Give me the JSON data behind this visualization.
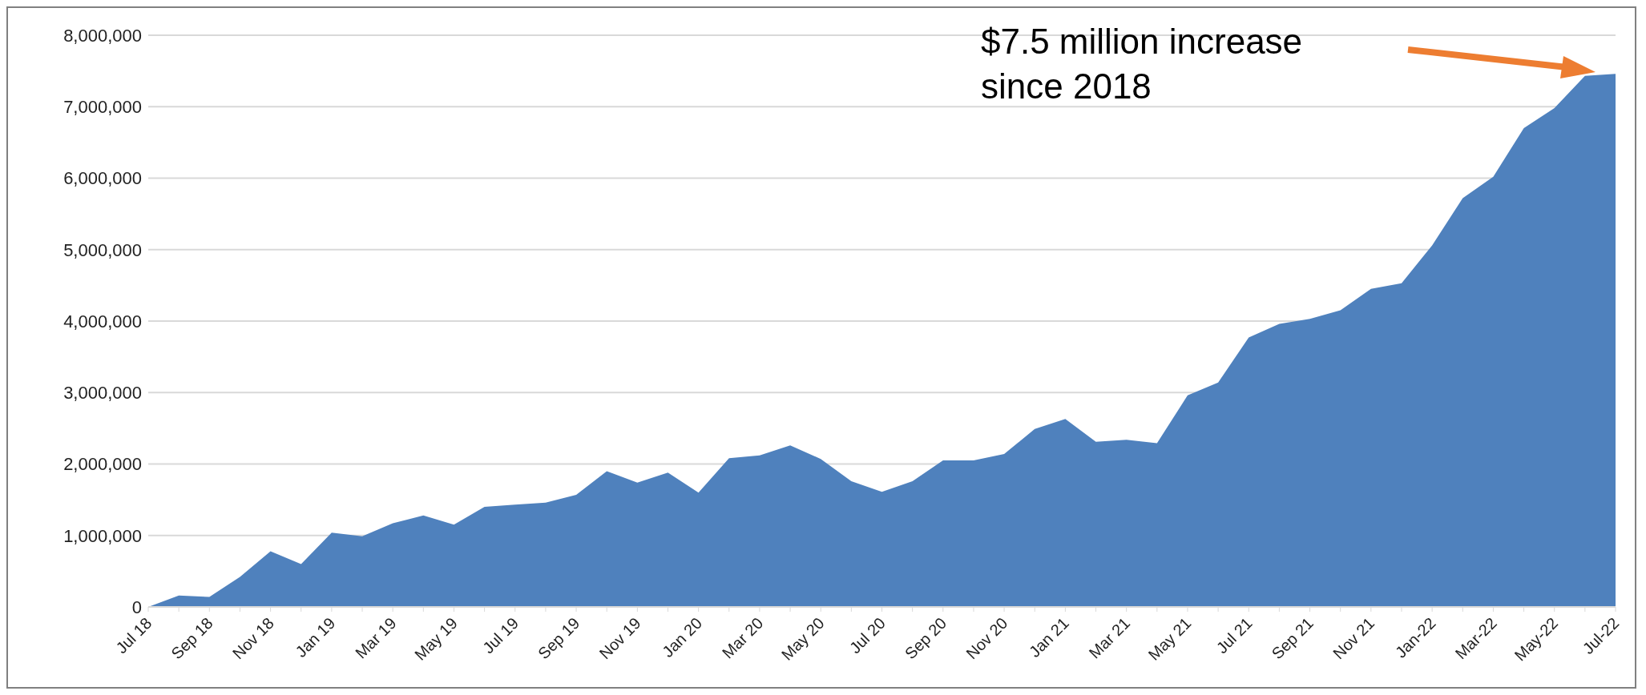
{
  "chart_data": {
    "type": "area",
    "color": "#4f81bd",
    "categories": [
      "Jul 18",
      null,
      "Sep 18",
      null,
      "Nov 18",
      null,
      "Jan 19",
      null,
      "Mar 19",
      null,
      "May 19",
      null,
      "Jul 19",
      null,
      "Sep 19",
      null,
      "Nov 19",
      null,
      "Jan 20",
      null,
      "Mar 20",
      null,
      "May 20",
      null,
      "Jul 20",
      null,
      "Sep 20",
      null,
      "Nov 20",
      null,
      "Jan 21",
      null,
      "Mar 21",
      null,
      "May 21",
      null,
      "Jul 21",
      null,
      "Sep 21",
      null,
      "Nov 21",
      null,
      "Jan-22",
      null,
      "Mar-22",
      null,
      "May-22",
      null,
      "Jul-22"
    ],
    "values": [
      0,
      160000,
      140000,
      420000,
      780000,
      600000,
      1040000,
      990000,
      1170000,
      1280000,
      1150000,
      1400000,
      1430000,
      1460000,
      1570000,
      1900000,
      1740000,
      1880000,
      1600000,
      2080000,
      2120000,
      2260000,
      2070000,
      1760000,
      1610000,
      1760000,
      2050000,
      2050000,
      2140000,
      2490000,
      2630000,
      2310000,
      2340000,
      2290000,
      2960000,
      3140000,
      3770000,
      3960000,
      4030000,
      4150000,
      4450000,
      4530000,
      5060000,
      5720000,
      6020000,
      6700000,
      6980000,
      7430000,
      7460000
    ],
    "ylim": [
      0,
      8000000
    ],
    "yticks": [
      0,
      {
        "value": 1000000,
        "label": "1,000,000"
      },
      {
        "value": 2000000,
        "label": "2,000,000"
      },
      {
        "value": 3000000,
        "label": "3,000,000"
      },
      {
        "value": 4000000,
        "label": "4,000,000"
      },
      {
        "value": 5000000,
        "label": "5,000,000"
      },
      {
        "value": 6000000,
        "label": "6,000,000"
      },
      {
        "value": 7000000,
        "label": "7,000,000"
      },
      {
        "value": 8000000,
        "label": "8,000,000"
      }
    ],
    "grid": "y",
    "annotations": [
      "$7.5 million increase since 2018"
    ]
  }
}
